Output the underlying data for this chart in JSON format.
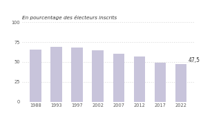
{
  "categories": [
    "1988",
    "1993",
    "1997",
    "2002",
    "2007",
    "2012",
    "2017",
    "2022"
  ],
  "values": [
    65.7,
    68.9,
    67.9,
    64.4,
    60.0,
    57.2,
    48.7,
    47.5
  ],
  "bar_color": "#c8c4db",
  "bar_edge_color": "none",
  "title": "En pourcentage des électeurs inscrits",
  "ylim": [
    0,
    100
  ],
  "yticks": [
    0,
    25,
    50,
    75,
    100
  ],
  "annotation_value": "47,5",
  "annotation_bar_index": 7,
  "background_color": "#ffffff",
  "grid_color": "#bbbbbb",
  "title_fontsize": 5.2,
  "tick_fontsize": 4.8,
  "annotation_fontsize": 5.5
}
